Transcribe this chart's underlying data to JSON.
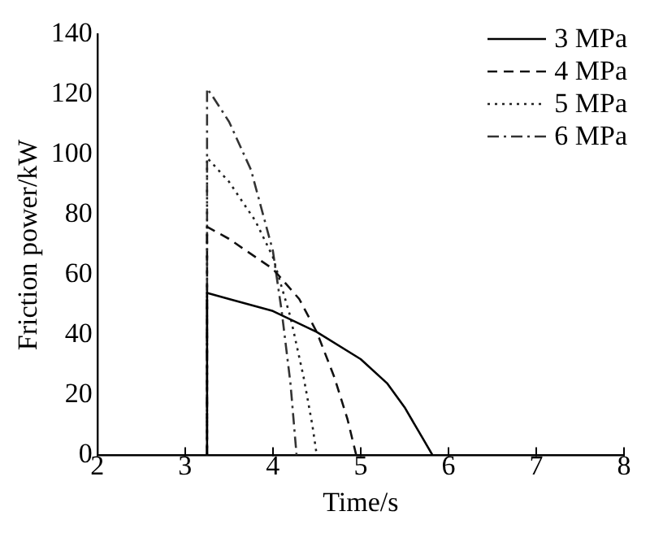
{
  "chart_data": {
    "type": "line",
    "xlabel": "Time/s",
    "ylabel": "Friction power/kW",
    "xlim": [
      2,
      8
    ],
    "xticks": [
      2,
      3,
      4,
      5,
      6,
      7,
      8
    ],
    "ylim": [
      0,
      140
    ],
    "yticks": [
      0,
      20,
      40,
      60,
      80,
      100,
      120,
      140
    ],
    "grid": false,
    "legend": "top right",
    "marker": "none",
    "series": [
      {
        "name": "3 MPa",
        "color": "#000000",
        "line_style": "solid",
        "x": [
          3.25,
          3.25,
          3.5,
          4,
          4.5,
          5,
          5.3,
          5.5,
          5.7,
          5.82
        ],
        "values": [
          0,
          54,
          52,
          48,
          41,
          32,
          24,
          16,
          6,
          0
        ]
      },
      {
        "name": "4 MPa",
        "color": "#111111",
        "line_style": "dashed",
        "x": [
          3.25,
          3.25,
          3.5,
          4,
          4.3,
          4.5,
          4.7,
          4.85,
          4.95
        ],
        "values": [
          0,
          76,
          72,
          62,
          52,
          41,
          26,
          12,
          0
        ]
      },
      {
        "name": "5 MPa",
        "color": "#222222",
        "line_style": "dotted",
        "x": [
          3.25,
          3.25,
          3.5,
          3.8,
          4,
          4.2,
          4.35,
          4.45,
          4.5
        ],
        "values": [
          0,
          99,
          91,
          78,
          66,
          46,
          26,
          10,
          0
        ]
      },
      {
        "name": "6 MPa",
        "color": "#333333",
        "line_style": "dashdot",
        "x": [
          3.25,
          3.25,
          3.3,
          3.5,
          3.75,
          4,
          4.1,
          4.2,
          4.27
        ],
        "values": [
          0,
          122,
          120,
          111,
          95,
          68,
          48,
          24,
          0
        ]
      }
    ]
  }
}
